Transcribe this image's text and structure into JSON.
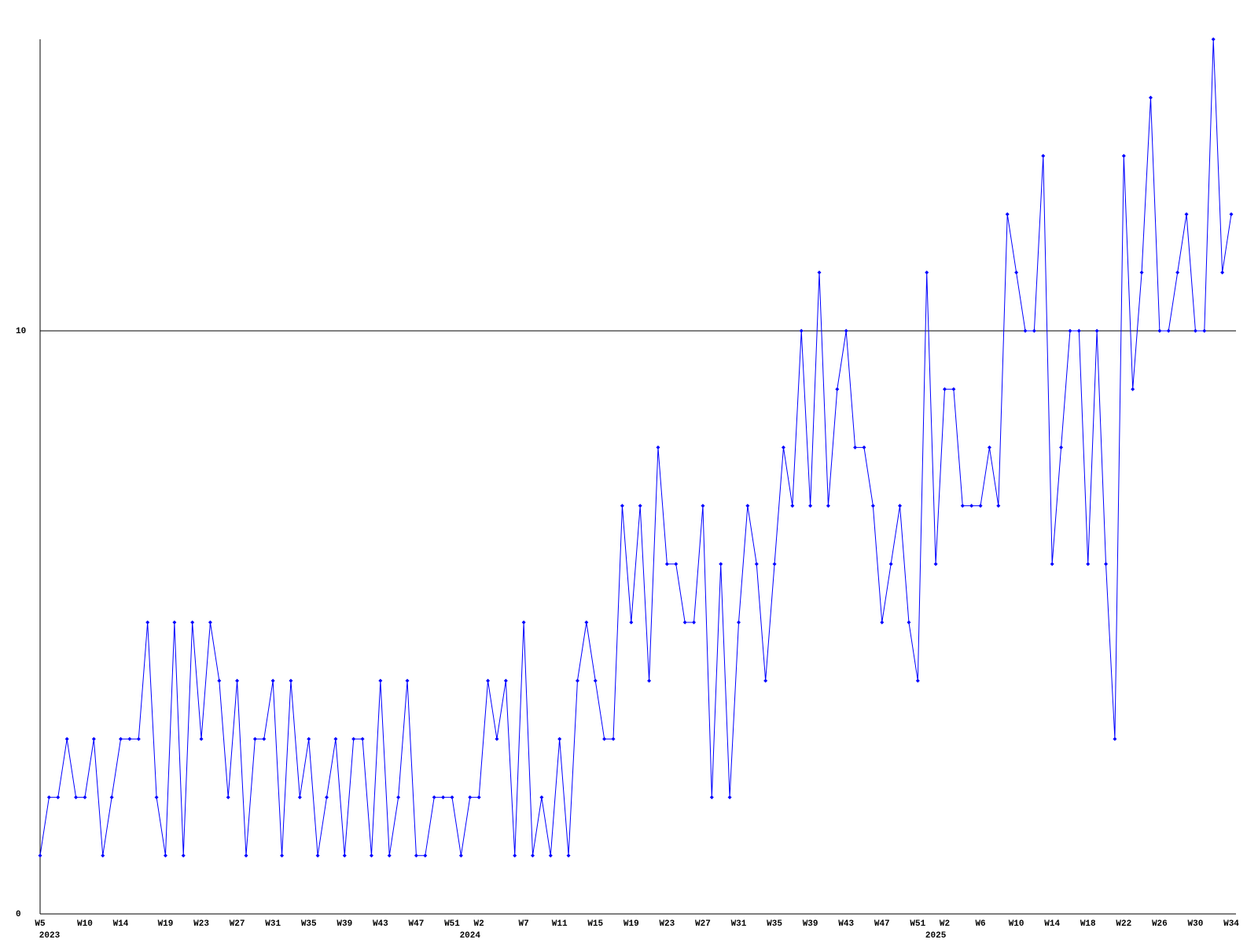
{
  "chart_data": {
    "type": "line",
    "categories": [
      "W5",
      null,
      null,
      null,
      null,
      "W10",
      null,
      null,
      null,
      "W14",
      null,
      null,
      null,
      null,
      "W19",
      null,
      null,
      null,
      "W23",
      null,
      null,
      null,
      "W27",
      null,
      null,
      null,
      "W31",
      null,
      null,
      null,
      "W35",
      null,
      null,
      null,
      "W39",
      null,
      null,
      null,
      "W43",
      null,
      null,
      null,
      "W47",
      null,
      null,
      null,
      "W51",
      null,
      null,
      "W2",
      null,
      null,
      null,
      null,
      "W7",
      null,
      null,
      null,
      "W11",
      null,
      null,
      null,
      "W15",
      null,
      null,
      null,
      "W19",
      null,
      null,
      null,
      "W23",
      null,
      null,
      null,
      "W27",
      null,
      null,
      null,
      "W31",
      null,
      null,
      null,
      "W35",
      null,
      null,
      null,
      "W39",
      null,
      null,
      null,
      "W43",
      null,
      null,
      null,
      "W47",
      null,
      null,
      null,
      "W51",
      null,
      null,
      "W2",
      null,
      null,
      null,
      "W6",
      null,
      null,
      null,
      "W10",
      null,
      null,
      null,
      "W14",
      null,
      null,
      null,
      "W18",
      null,
      null,
      null,
      "W22",
      null,
      null,
      null,
      "W26",
      null,
      null,
      null,
      "W30",
      null,
      null,
      null,
      "W34"
    ],
    "year_labels": [
      "2023",
      null,
      null,
      null,
      null,
      null,
      null,
      null,
      null,
      null,
      null,
      null,
      null,
      null,
      null,
      null,
      null,
      null,
      null,
      null,
      null,
      null,
      null,
      null,
      null,
      null,
      null,
      null,
      null,
      null,
      null,
      null,
      null,
      null,
      null,
      null,
      null,
      null,
      null,
      null,
      null,
      null,
      null,
      null,
      null,
      null,
      null,
      null,
      "2024",
      null,
      null,
      null,
      null,
      null,
      null,
      null,
      null,
      null,
      null,
      null,
      null,
      null,
      null,
      null,
      null,
      null,
      null,
      null,
      null,
      null,
      null,
      null,
      null,
      null,
      null,
      null,
      null,
      null,
      null,
      null,
      null,
      null,
      null,
      null,
      null,
      null,
      null,
      null,
      null,
      null,
      null,
      null,
      null,
      null,
      null,
      null,
      null,
      null,
      null,
      null,
      "2025",
      null,
      null,
      null,
      null,
      null,
      null,
      null,
      null,
      null,
      null,
      null,
      null,
      null,
      null,
      null,
      null,
      null,
      null,
      null,
      null,
      null,
      null,
      null,
      null,
      null,
      null,
      null,
      null,
      null,
      null,
      null,
      null,
      null
    ],
    "values": [
      1,
      2,
      2,
      3,
      2,
      2,
      3,
      1,
      2,
      3,
      3,
      3,
      5,
      2,
      1,
      5,
      1,
      5,
      3,
      5,
      4,
      2,
      4,
      1,
      3,
      3,
      4,
      1,
      4,
      2,
      3,
      1,
      2,
      3,
      1,
      3,
      3,
      1,
      4,
      1,
      2,
      4,
      1,
      1,
      2,
      2,
      2,
      1,
      2,
      2,
      4,
      3,
      4,
      1,
      5,
      1,
      2,
      1,
      3,
      1,
      4,
      5,
      4,
      3,
      3,
      7,
      5,
      7,
      4,
      8,
      6,
      6,
      5,
      5,
      7,
      2,
      6,
      2,
      5,
      7,
      6,
      4,
      6,
      8,
      7,
      10,
      7,
      11,
      7,
      9,
      10,
      8,
      8,
      7,
      5,
      6,
      7,
      5,
      4,
      11,
      6,
      9,
      9,
      7,
      7,
      7,
      8,
      7,
      12,
      11,
      10,
      10,
      13,
      6,
      8,
      10,
      10,
      6,
      10,
      6,
      3,
      13,
      9,
      11,
      14,
      10,
      10,
      11,
      12,
      10,
      10,
      15,
      11,
      12
    ],
    "color": "#0000ff",
    "ylim": [
      0,
      15
    ],
    "yticks": [
      0,
      10
    ],
    "grid": true
  }
}
